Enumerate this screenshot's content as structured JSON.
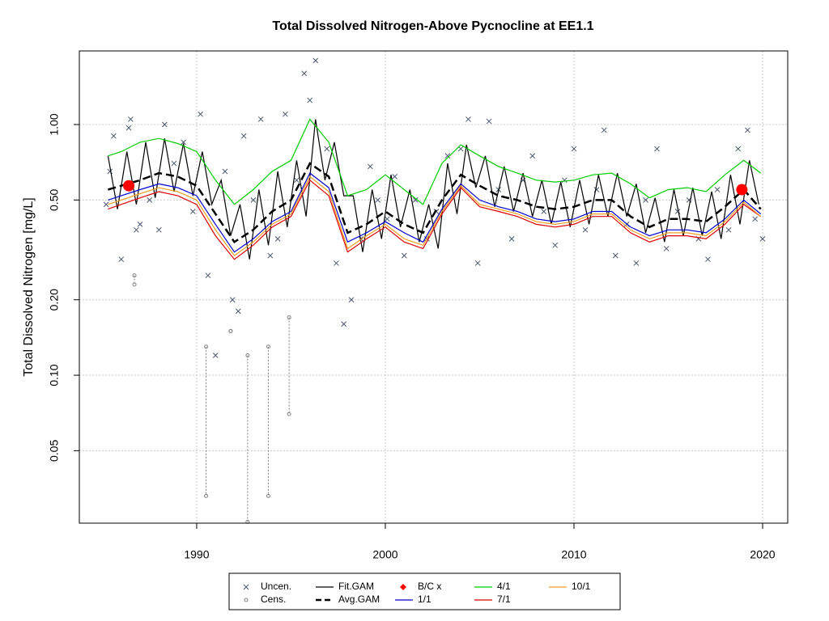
{
  "chart_data": {
    "type": "line",
    "title": "Total Dissolved Nitrogen-Above Pycnocline at EE1.1",
    "ylabel": "Total Dissolved Nitrogen [mg/L]",
    "xlim": [
      1983.78,
      2021.33
    ],
    "ylim": [
      0.0257,
      1.966
    ],
    "log_y": true,
    "grid": true,
    "legend": "bottom",
    "xticks": [
      1990,
      2000,
      2010,
      2020
    ],
    "yticks": [
      {
        "value": 0.05,
        "label": "0.05"
      },
      {
        "value": 0.1,
        "label": "0.10"
      },
      {
        "value": 0.2,
        "label": "0.20"
      },
      {
        "value": 0.5,
        "label": "0.50"
      },
      {
        "value": 1,
        "label": "1.00"
      }
    ],
    "series": [
      {
        "name": "Uncen.",
        "color": "#4a5670",
        "mark": "x",
        "x": [
          1985.2,
          1985.4,
          1985.6,
          1986.0,
          1986.4,
          1986.5,
          1986.8,
          1987.0,
          1987.5,
          1988.0,
          1988.3,
          1988.8,
          1989.3,
          1989.8,
          1990.2,
          1990.6,
          1991.0,
          1991.5,
          1991.9,
          1992.2,
          1992.5,
          1993.0,
          1993.4,
          1993.9,
          1994.3,
          1994.7,
          1995.3,
          1995.7,
          1996.0,
          1996.3,
          1996.9,
          1997.4,
          1997.8,
          1998.2,
          1998.7,
          1999.2,
          1999.6,
          2000.1,
          2000.5,
          2001.0,
          2001.6,
          2002.2,
          2002.7,
          2003.3,
          2004.0,
          2004.4,
          2004.9,
          2005.5,
          2006.0,
          2006.7,
          2007.3,
          2007.8,
          2008.4,
          2009.0,
          2009.5,
          2010.0,
          2010.6,
          2011.2,
          2011.6,
          2012.2,
          2012.8,
          2013.3,
          2013.8,
          2014.4,
          2014.9,
          2015.5,
          2016.1,
          2016.6,
          2017.1,
          2017.6,
          2018.2,
          2018.7,
          2019.2,
          2019.6,
          2020.0
        ],
        "values": [
          0.48,
          0.65,
          0.9,
          0.29,
          0.97,
          1.05,
          0.38,
          0.4,
          0.5,
          0.38,
          1.0,
          0.7,
          0.85,
          0.45,
          1.1,
          0.25,
          0.12,
          0.65,
          0.2,
          0.18,
          0.9,
          0.5,
          1.05,
          0.3,
          0.35,
          1.1,
          0.6,
          1.6,
          1.25,
          1.8,
          0.8,
          0.28,
          0.16,
          0.2,
          0.35,
          0.68,
          0.5,
          0.42,
          0.62,
          0.3,
          0.5,
          0.35,
          0.45,
          0.75,
          0.8,
          1.05,
          0.28,
          1.03,
          0.55,
          0.35,
          0.6,
          0.75,
          0.45,
          0.33,
          0.6,
          0.8,
          0.38,
          0.55,
          0.95,
          0.3,
          0.4,
          0.28,
          0.5,
          0.8,
          0.32,
          0.45,
          0.5,
          0.35,
          0.29,
          0.55,
          0.38,
          0.8,
          0.95,
          0.42,
          0.35
        ]
      },
      {
        "name": "Cens.",
        "color": "#808080",
        "mark": "o",
        "x": [
          1986.7,
          1990.5,
          1992.7,
          1993.8,
          1994.9,
          1991.8
        ],
        "values": [
          0.25,
          0.13,
          0.12,
          0.13,
          0.17,
          0.15
        ],
        "lower": [
          0.23,
          0.033,
          0.026,
          0.033,
          0.07,
          0.15
        ]
      },
      {
        "name": "Fit.GAM",
        "color": "#000000",
        "mark": "line",
        "x": [
          1985.3,
          1985.8,
          1986.3,
          1986.8,
          1987.3,
          1987.8,
          1988.3,
          1988.8,
          1989.3,
          1989.8,
          1990.3,
          1990.8,
          1991.3,
          1991.8,
          1992.3,
          1992.8,
          1993.3,
          1993.8,
          1994.3,
          1994.8,
          1995.3,
          1995.8,
          1996.3,
          1996.8,
          1997.3,
          1997.8,
          1998.3,
          1998.8,
          1999.3,
          1999.8,
          2000.3,
          2000.8,
          2001.3,
          2001.8,
          2002.3,
          2002.8,
          2003.3,
          2003.8,
          2004.3,
          2004.8,
          2005.3,
          2005.8,
          2006.3,
          2006.8,
          2007.3,
          2007.8,
          2008.3,
          2008.8,
          2009.3,
          2009.8,
          2010.3,
          2010.8,
          2011.3,
          2011.8,
          2012.3,
          2012.8,
          2013.3,
          2013.8,
          2014.3,
          2014.8,
          2015.3,
          2015.8,
          2016.3,
          2016.8,
          2017.3,
          2017.8,
          2018.3,
          2018.8,
          2019.3,
          2019.8
        ],
        "values": [
          0.75,
          0.46,
          0.78,
          0.48,
          0.85,
          0.51,
          0.88,
          0.54,
          0.84,
          0.52,
          0.78,
          0.48,
          0.6,
          0.36,
          0.48,
          0.29,
          0.55,
          0.33,
          0.65,
          0.39,
          0.72,
          0.43,
          1.05,
          0.6,
          0.85,
          0.52,
          0.52,
          0.31,
          0.55,
          0.35,
          0.63,
          0.39,
          0.55,
          0.34,
          0.48,
          0.32,
          0.7,
          0.44,
          0.83,
          0.56,
          0.75,
          0.47,
          0.68,
          0.45,
          0.64,
          0.43,
          0.6,
          0.4,
          0.59,
          0.39,
          0.6,
          0.4,
          0.63,
          0.43,
          0.64,
          0.43,
          0.58,
          0.37,
          0.51,
          0.34,
          0.55,
          0.36,
          0.56,
          0.36,
          0.54,
          0.35,
          0.63,
          0.4,
          0.72,
          0.48
        ]
      },
      {
        "name": "Avg.GAM",
        "color": "#000000",
        "mark": "dashed",
        "x": [
          1985.3,
          1986,
          1987,
          1988,
          1989,
          1990,
          1991,
          1992,
          1993,
          1994,
          1995,
          1996,
          1997,
          1998,
          1999,
          2000,
          2001,
          2002,
          2003,
          2004,
          2005,
          2006,
          2007,
          2008,
          2009,
          2010,
          2011,
          2012,
          2013,
          2014,
          2015,
          2016,
          2017,
          2018,
          2019,
          2019.9
        ],
        "values": [
          0.55,
          0.57,
          0.6,
          0.64,
          0.62,
          0.57,
          0.44,
          0.34,
          0.38,
          0.45,
          0.5,
          0.7,
          0.62,
          0.37,
          0.4,
          0.45,
          0.4,
          0.37,
          0.5,
          0.63,
          0.57,
          0.52,
          0.5,
          0.47,
          0.46,
          0.47,
          0.5,
          0.5,
          0.43,
          0.39,
          0.42,
          0.42,
          0.41,
          0.47,
          0.55,
          0.46
        ]
      },
      {
        "name": "B/C x",
        "color": "#ff0000",
        "mark": "dot",
        "x": [
          1986.4,
          2018.9
        ],
        "values": [
          0.57,
          0.55
        ]
      },
      {
        "name": "1/1",
        "color": "#0000cc",
        "mark": "line",
        "x": [
          1985.3,
          1986,
          1987,
          1988,
          1989,
          1990,
          1991,
          1992,
          1993,
          1994,
          1995,
          1996,
          1997,
          1998,
          1999,
          2000,
          2001,
          2002,
          2003,
          2004,
          2005,
          2006,
          2007,
          2008,
          2009,
          2010,
          2011,
          2012,
          2013,
          2014,
          2015,
          2016,
          2017,
          2018,
          2019,
          2019.9
        ],
        "values": [
          0.5,
          0.52,
          0.55,
          0.58,
          0.56,
          0.52,
          0.4,
          0.31,
          0.35,
          0.41,
          0.45,
          0.64,
          0.56,
          0.34,
          0.37,
          0.41,
          0.37,
          0.34,
          0.46,
          0.58,
          0.5,
          0.47,
          0.45,
          0.42,
          0.41,
          0.42,
          0.45,
          0.45,
          0.39,
          0.36,
          0.38,
          0.38,
          0.37,
          0.42,
          0.5,
          0.44
        ]
      },
      {
        "name": "4/1",
        "color": "#00cc00",
        "mark": "line",
        "x": [
          1985.3,
          1986,
          1987,
          1988,
          1989,
          1990,
          1991,
          1992,
          1993,
          1994,
          1995,
          1996,
          1997,
          1998,
          1999,
          2000,
          2001,
          2002,
          2003,
          2004,
          2005,
          2006,
          2007,
          2008,
          2009,
          2010,
          2011,
          2012,
          2013,
          2014,
          2015,
          2016,
          2017,
          2018,
          2019,
          2019.9
        ],
        "values": [
          0.75,
          0.78,
          0.85,
          0.88,
          0.84,
          0.78,
          0.6,
          0.48,
          0.55,
          0.65,
          0.72,
          1.05,
          0.85,
          0.52,
          0.55,
          0.63,
          0.55,
          0.48,
          0.7,
          0.83,
          0.75,
          0.68,
          0.64,
          0.6,
          0.59,
          0.6,
          0.63,
          0.64,
          0.58,
          0.51,
          0.55,
          0.56,
          0.54,
          0.63,
          0.72,
          0.64
        ]
      },
      {
        "name": "7/1",
        "color": "#dd0000",
        "mark": "line",
        "x": [
          1985.3,
          1986,
          1987,
          1988,
          1989,
          1990,
          1991,
          1992,
          1993,
          1994,
          1995,
          1996,
          1997,
          1998,
          1999,
          2000,
          2001,
          2002,
          2003,
          2004,
          2005,
          2006,
          2007,
          2008,
          2009,
          2010,
          2011,
          2012,
          2013,
          2014,
          2015,
          2016,
          2017,
          2018,
          2019,
          2019.9
        ],
        "values": [
          0.46,
          0.48,
          0.51,
          0.54,
          0.52,
          0.48,
          0.36,
          0.29,
          0.33,
          0.39,
          0.43,
          0.6,
          0.52,
          0.31,
          0.35,
          0.39,
          0.34,
          0.32,
          0.44,
          0.56,
          0.47,
          0.45,
          0.43,
          0.4,
          0.39,
          0.4,
          0.43,
          0.43,
          0.37,
          0.34,
          0.36,
          0.36,
          0.35,
          0.4,
          0.48,
          0.43
        ]
      },
      {
        "name": "10/1",
        "color": "#f0a020",
        "mark": "line",
        "x": [
          1985.3,
          1986,
          1987,
          1988,
          1989,
          1990,
          1991,
          1992,
          1993,
          1994,
          1995,
          1996,
          1997,
          1998,
          1999,
          2000,
          2001,
          2002,
          2003,
          2004,
          2005,
          2006,
          2007,
          2008,
          2009,
          2010,
          2011,
          2012,
          2013,
          2014,
          2015,
          2016,
          2017,
          2018,
          2019,
          2019.9
        ],
        "values": [
          0.48,
          0.5,
          0.53,
          0.56,
          0.54,
          0.5,
          0.38,
          0.3,
          0.34,
          0.4,
          0.44,
          0.62,
          0.54,
          0.32,
          0.36,
          0.4,
          0.35,
          0.33,
          0.45,
          0.57,
          0.48,
          0.46,
          0.44,
          0.41,
          0.4,
          0.41,
          0.44,
          0.44,
          0.38,
          0.35,
          0.37,
          0.37,
          0.36,
          0.41,
          0.49,
          0.43
        ]
      }
    ]
  }
}
